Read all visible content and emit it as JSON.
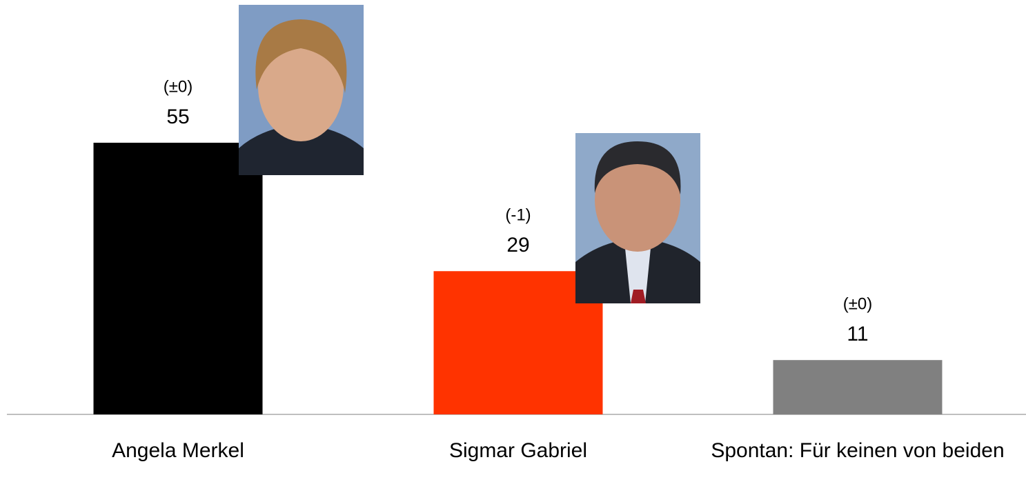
{
  "chart_data": {
    "type": "bar",
    "categories": [
      "Angela Merkel",
      "Sigmar Gabriel",
      "Spontan: Für keinen von beiden"
    ],
    "values": [
      55,
      29,
      11
    ],
    "changes": [
      "(±0)",
      "(-1)",
      "(±0)"
    ],
    "colors": [
      "#000000",
      "#ff3300",
      "#808080"
    ]
  }
}
